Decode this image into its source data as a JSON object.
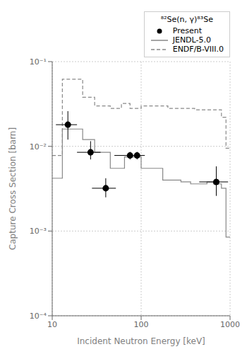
{
  "chart_data": {
    "type": "line",
    "xlabel": "Incident Neutron Energy [keV]",
    "ylabel": "Capture Cross Section [barn]",
    "legend_title": "⁸²Se(n, γ)⁸³Se",
    "log": true,
    "xlim": [
      10,
      1000
    ],
    "ylim": [
      0.0001,
      0.1
    ],
    "xticks": [
      10,
      100,
      1000
    ],
    "yticks": [
      {
        "value": 0.0001,
        "label": "10⁻⁴"
      },
      {
        "value": 0.001,
        "label": "10⁻³"
      },
      {
        "value": 0.01,
        "label": "10⁻²"
      },
      {
        "value": 0.1,
        "label": "10⁻¹"
      }
    ],
    "grid": true,
    "legend": "upper right",
    "series": [
      {
        "name": "Present",
        "type": "scatter",
        "color": "black",
        "marker": "o",
        "x": [
          15,
          27,
          40,
          75,
          90,
          700
        ],
        "values": [
          0.018,
          0.0085,
          0.0032,
          0.0078,
          0.0078,
          0.0038
        ],
        "xerr_lo": [
          4,
          8,
          12,
          25,
          20,
          250
        ],
        "xerr_hi": [
          4,
          8,
          12,
          25,
          20,
          250
        ],
        "yerr_lo": [
          0.006,
          0.0015,
          0.0007,
          0.0008,
          0.0008,
          0.0012
        ],
        "yerr_hi": [
          0.008,
          0.003,
          0.001,
          0.0008,
          0.0008,
          0.002
        ]
      },
      {
        "name": "JENDL-5.0",
        "type": "line",
        "color": "#888888",
        "line_style": "solid",
        "x": [
          10,
          13,
          13,
          22,
          22,
          30,
          30,
          45,
          45,
          65,
          65,
          100,
          100,
          175,
          175,
          280,
          280,
          360,
          360,
          550,
          550,
          650,
          650,
          800,
          800,
          900,
          900,
          1000
        ],
        "values": [
          0.0042,
          0.0042,
          0.016,
          0.016,
          0.012,
          0.012,
          0.0085,
          0.0085,
          0.0055,
          0.0055,
          0.0075,
          0.0075,
          0.0055,
          0.0055,
          0.004,
          0.004,
          0.0038,
          0.0038,
          0.0036,
          0.0036,
          0.0038,
          0.0038,
          0.0036,
          0.0036,
          0.0032,
          0.0032,
          0.00085,
          0.00085
        ]
      },
      {
        "name": "ENDF/B-VIII.0",
        "type": "line",
        "color": "#888888",
        "line_style": "dashed",
        "x": [
          10,
          13,
          13,
          22,
          22,
          30,
          30,
          45,
          45,
          60,
          60,
          75,
          75,
          100,
          100,
          140,
          140,
          200,
          200,
          300,
          300,
          400,
          400,
          600,
          600,
          800,
          800,
          900,
          900,
          1000
        ],
        "values": [
          0.0078,
          0.0078,
          0.062,
          0.062,
          0.038,
          0.038,
          0.03,
          0.03,
          0.028,
          0.028,
          0.032,
          0.032,
          0.028,
          0.028,
          0.03,
          0.03,
          0.03,
          0.03,
          0.028,
          0.028,
          0.028,
          0.028,
          0.027,
          0.027,
          0.027,
          0.027,
          0.022,
          0.022,
          0.0095,
          0.0095
        ]
      }
    ]
  }
}
